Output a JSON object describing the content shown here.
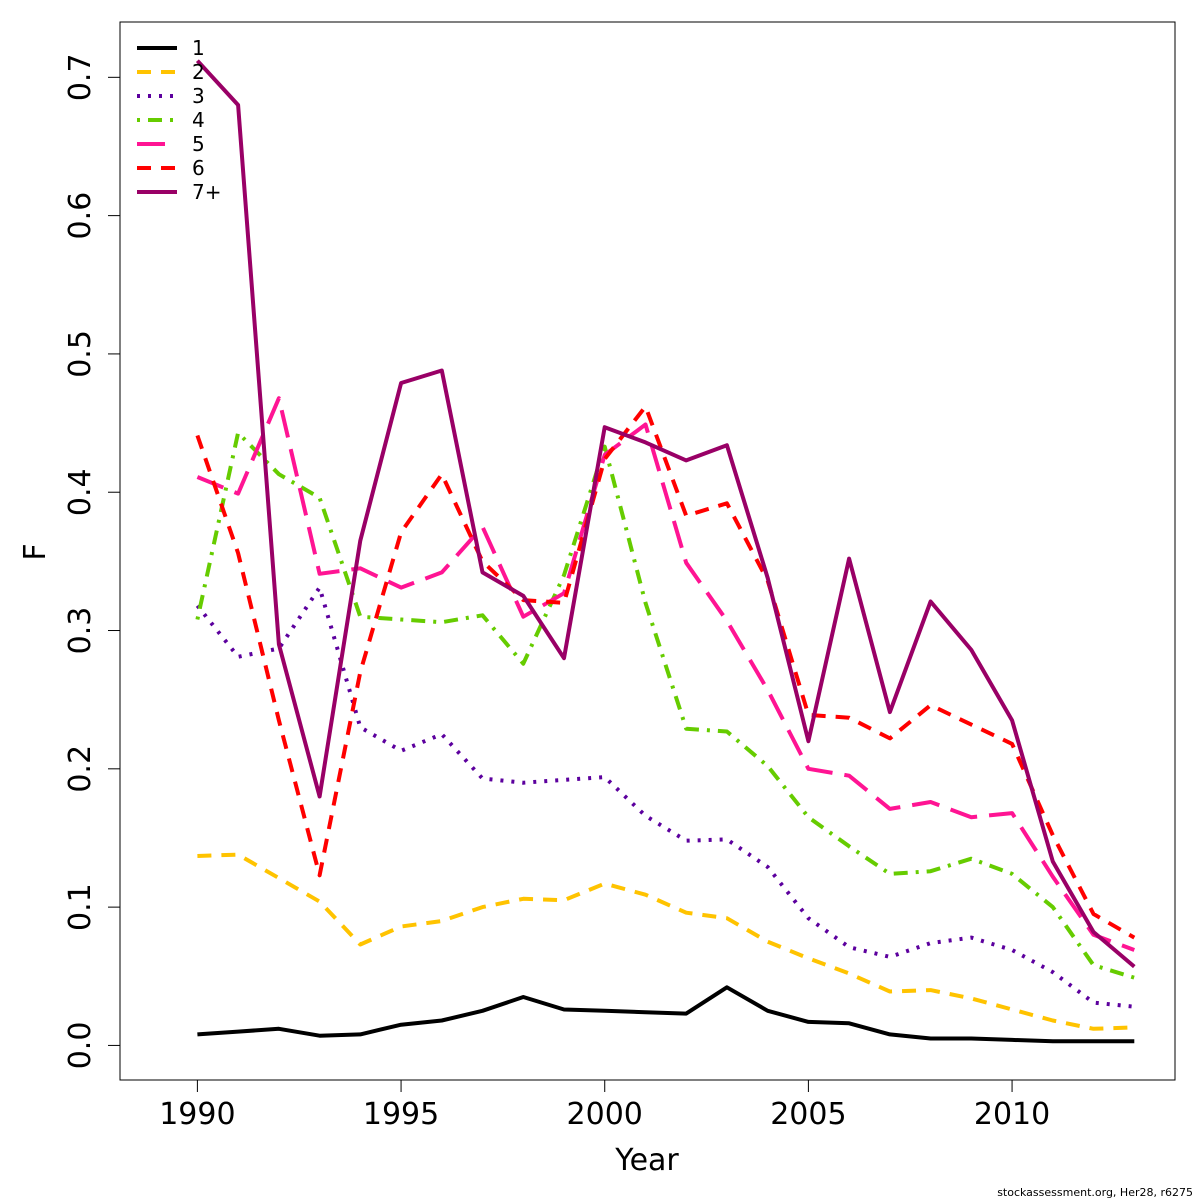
{
  "chart_data": {
    "type": "line",
    "title": "",
    "xlabel": "Year",
    "ylabel": "F",
    "xlim": [
      1988.1,
      2014.0
    ],
    "ylim": [
      -0.025,
      0.74
    ],
    "x_ticks": [
      1990,
      1995,
      2000,
      2005,
      2010
    ],
    "x_tick_labels": [
      "1990",
      "1995",
      "2000",
      "2005",
      "2010"
    ],
    "y_ticks": [
      0.0,
      0.1,
      0.2,
      0.3,
      0.4,
      0.5,
      0.6,
      0.7
    ],
    "y_tick_labels": [
      "0.0",
      "0.1",
      "0.2",
      "0.3",
      "0.4",
      "0.5",
      "0.6",
      "0.7"
    ],
    "grid": false,
    "legend_position": "top-left",
    "x": [
      1990,
      1991,
      1992,
      1993,
      1994,
      1995,
      1996,
      1997,
      1998,
      1999,
      2000,
      2001,
      2002,
      2003,
      2004,
      2005,
      2006,
      2007,
      2008,
      2009,
      2010,
      2011,
      2012,
      2013
    ],
    "series": [
      {
        "name": "1",
        "color": "#000000",
        "dash": "solid",
        "values": [
          0.008,
          0.01,
          0.012,
          0.007,
          0.008,
          0.015,
          0.018,
          0.025,
          0.035,
          0.026,
          0.025,
          0.024,
          0.023,
          0.042,
          0.025,
          0.017,
          0.016,
          0.008,
          0.005,
          0.005,
          0.004,
          0.003,
          0.003,
          0.003
        ]
      },
      {
        "name": "2",
        "color": "#FFC300",
        "dash": "dashed",
        "values": [
          0.137,
          0.138,
          0.121,
          0.104,
          0.073,
          0.086,
          0.09,
          0.1,
          0.106,
          0.105,
          0.117,
          0.109,
          0.096,
          0.092,
          0.075,
          0.063,
          0.052,
          0.039,
          0.04,
          0.034,
          0.026,
          0.018,
          0.012,
          0.013
        ]
      },
      {
        "name": "3",
        "color": "#5C009E",
        "dash": "dotted",
        "values": [
          0.318,
          0.281,
          0.287,
          0.331,
          0.23,
          0.213,
          0.225,
          0.193,
          0.19,
          0.192,
          0.194,
          0.166,
          0.148,
          0.149,
          0.129,
          0.092,
          0.071,
          0.064,
          0.074,
          0.078,
          0.069,
          0.053,
          0.031,
          0.028
        ]
      },
      {
        "name": "4",
        "color": "#66CC00",
        "dash": "dotdash",
        "values": [
          0.308,
          0.443,
          0.413,
          0.396,
          0.31,
          0.308,
          0.306,
          0.311,
          0.276,
          0.34,
          0.433,
          0.32,
          0.229,
          0.227,
          0.202,
          0.165,
          0.144,
          0.124,
          0.126,
          0.135,
          0.124,
          0.1,
          0.058,
          0.049
        ]
      },
      {
        "name": "5",
        "color": "#FF1493",
        "dash": "longdash",
        "values": [
          0.411,
          0.399,
          0.468,
          0.341,
          0.345,
          0.331,
          0.342,
          0.375,
          0.31,
          0.327,
          0.427,
          0.449,
          0.349,
          0.307,
          0.257,
          0.2,
          0.195,
          0.171,
          0.176,
          0.165,
          0.168,
          0.122,
          0.08,
          0.069
        ]
      },
      {
        "name": "6",
        "color": "#FF0000",
        "dash": "dashed",
        "values": [
          0.441,
          0.356,
          0.235,
          0.123,
          0.27,
          0.371,
          0.413,
          0.35,
          0.322,
          0.32,
          0.424,
          0.462,
          0.383,
          0.392,
          0.336,
          0.239,
          0.237,
          0.222,
          0.246,
          0.232,
          0.218,
          0.152,
          0.095,
          0.078
        ]
      },
      {
        "name": "7+",
        "color": "#990066",
        "dash": "solid",
        "values": [
          0.712,
          0.68,
          0.29,
          0.18,
          0.365,
          0.479,
          0.488,
          0.342,
          0.325,
          0.28,
          0.447,
          0.436,
          0.423,
          0.434,
          0.338,
          0.22,
          0.352,
          0.241,
          0.321,
          0.286,
          0.235,
          0.133,
          0.082,
          0.057
        ]
      }
    ]
  },
  "credit": "stockassessment.org, Her28, r6275"
}
